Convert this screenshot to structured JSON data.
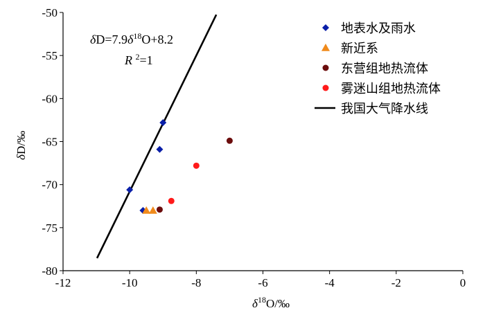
{
  "chart_data": {
    "type": "scatter",
    "title": "",
    "xlabel": "δ18O/‰",
    "ylabel": "δD/‰",
    "xlim": [
      -12,
      0
    ],
    "ylim": [
      -80,
      -50
    ],
    "x_ticks": [
      -12,
      -10,
      -8,
      -6,
      -4,
      -2,
      0
    ],
    "y_ticks": [
      -50,
      -55,
      -60,
      -65,
      -70,
      -75,
      -80
    ],
    "grid": false,
    "legend_position": "top-right",
    "series": [
      {
        "name": "地表水及雨水",
        "marker": "diamond",
        "color": "#0a1fa8",
        "points": [
          [
            -9.0,
            -62.8
          ],
          [
            -9.1,
            -65.9
          ],
          [
            -9.6,
            -73.0
          ],
          [
            -10.0,
            -70.6
          ]
        ]
      },
      {
        "name": "新近系",
        "marker": "triangle",
        "color": "#f08a1c",
        "points": [
          [
            -9.5,
            -73.0
          ],
          [
            -9.3,
            -73.0
          ]
        ]
      },
      {
        "name": "东营组地热流体",
        "marker": "circle",
        "color": "#6b0c0c",
        "points": [
          [
            -7.0,
            -64.9
          ],
          [
            -9.1,
            -72.9
          ]
        ]
      },
      {
        "name": "雾迷山组地热流体",
        "marker": "circle",
        "color": "#ff1a1a",
        "points": [
          [
            -8.0,
            -67.8
          ],
          [
            -8.75,
            -71.9
          ]
        ]
      }
    ],
    "line": {
      "name": "我国大气降水线",
      "color": "#000000",
      "slope": 7.9,
      "intercept": 8.2,
      "x_range": [
        -10.98,
        -7.4
      ]
    },
    "annotations": {
      "equation": "δD=7.9δ18O+8.2",
      "r2": "R2=1"
    }
  }
}
